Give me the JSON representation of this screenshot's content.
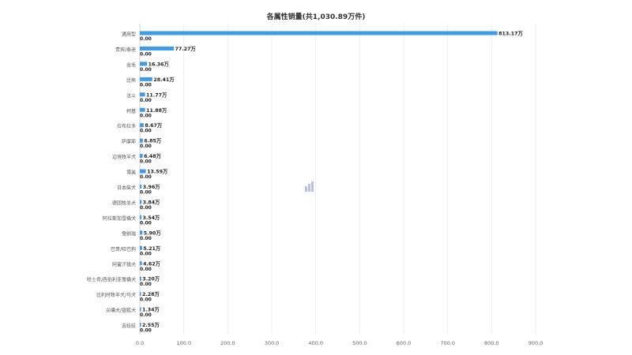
{
  "chart_data": {
    "type": "bar",
    "orientation": "horizontal",
    "title": "各属性销量(共1,030.89万件)",
    "categories": [
      "通用型",
      "贵宾/泰迪",
      "金毛",
      "比熊",
      "法斗",
      "柯基",
      "拉布拉多",
      "萨摩耶",
      "边境牧羊犬",
      "博美",
      "日本柴犬",
      "德国牧羊犬",
      "阿拉斯加雪橇犬",
      "雪纳瑞",
      "巴哥/哈巴狗",
      "阿富汗猎犬",
      "哈士奇/西伯利亚雪橇犬",
      "比利时牧羊犬/马犬",
      "尖嘴犬/银狐犬",
      "吉娃娃"
    ],
    "series": [
      {
        "values": [
          813.17,
          77.27,
          16.36,
          28.41,
          11.77,
          11.88,
          8.67,
          6.85,
          6.48,
          13.59,
          3.96,
          3.84,
          3.54,
          5.9,
          5.21,
          4.62,
          3.2,
          2.28,
          1.34,
          2.55
        ],
        "labels": [
          "813.17万",
          "77.27万",
          "16.36万",
          "28.41万",
          "11.77万",
          "11.88万",
          "8.67万",
          "6.85万",
          "6.48万",
          "13.59万",
          "3.96万",
          "3.84万",
          "3.54万",
          "5.90万",
          "5.21万",
          "4.62万",
          "3.20万",
          "2.28万",
          "1.34万",
          "2.55万"
        ],
        "color": "#3d9be9"
      },
      {
        "values": [
          0,
          0,
          0,
          0,
          0,
          0,
          0,
          0,
          0,
          0,
          0,
          0,
          0,
          0,
          0,
          0,
          0,
          0,
          0,
          0
        ],
        "labels": [
          "0.00",
          "0.00",
          "0.00",
          "0.00",
          "0.00",
          "0.00",
          "0.00",
          "0.00",
          "0.00",
          "0.00",
          "0.00",
          "0.00",
          "0.00",
          "0.00",
          "0.00",
          "0.00",
          "0.00",
          "0.00",
          "0.00",
          "0.00"
        ],
        "color": "#90c4f2"
      }
    ],
    "xticks": [
      "0.0",
      "100.0",
      "200.0",
      "300.0",
      "400.0",
      "500.0",
      "600.0",
      "700.0",
      "800.0",
      "900.0"
    ],
    "xlim": [
      0,
      900
    ],
    "grid": true
  },
  "colors": {
    "bar": "#3d9be9",
    "grid": "#ececec",
    "watermark": "#7b8fd0"
  }
}
